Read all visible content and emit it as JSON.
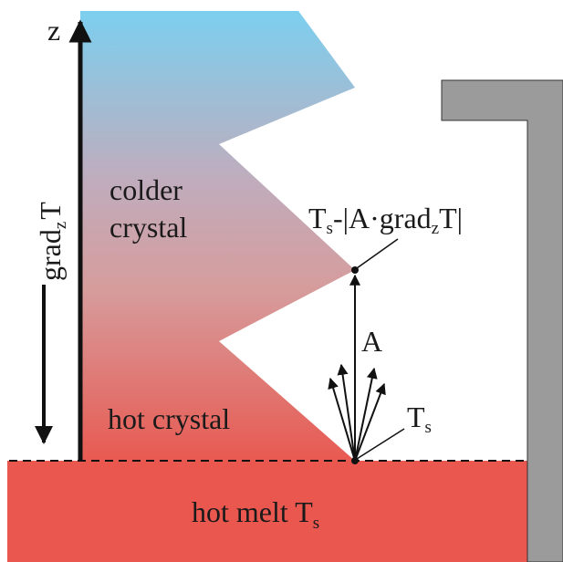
{
  "labels": {
    "z_axis": "z",
    "grad_main": "grad",
    "grad_sub": "z",
    "grad_tail": "T",
    "colder_line1": "colder",
    "colder_line2": "crystal",
    "top_ts_main": "T",
    "top_ts_sub": "s",
    "top_ts_rest": "-|A·grad",
    "top_ts_sub2": "z",
    "top_ts_tail": "T|",
    "amplitude": "A",
    "ts_main": "T",
    "ts_sub": "s",
    "hot_crystal": "hot crystal",
    "melt_main": "hot melt T",
    "melt_sub": "s"
  },
  "colors": {
    "crystal_top": "#7ccfef",
    "crystal_mid": "#c7a6b2",
    "crystal_bottom": "#e85a52",
    "melt": "#e9574f",
    "wall": "#9b9b9b",
    "ink": "#111111"
  }
}
